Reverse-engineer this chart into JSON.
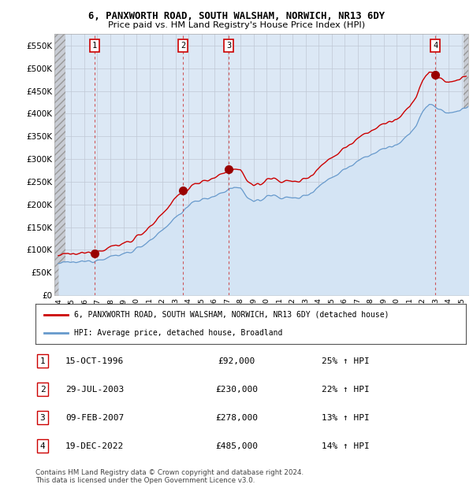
{
  "title": "6, PANXWORTH ROAD, SOUTH WALSHAM, NORWICH, NR13 6DY",
  "subtitle": "Price paid vs. HM Land Registry's House Price Index (HPI)",
  "ylim": [
    0,
    575000
  ],
  "xlim_start": 1993.7,
  "xlim_end": 2025.5,
  "yticks": [
    0,
    50000,
    100000,
    150000,
    200000,
    250000,
    300000,
    350000,
    400000,
    450000,
    500000,
    550000
  ],
  "ytick_labels": [
    "£0",
    "£50K",
    "£100K",
    "£150K",
    "£200K",
    "£250K",
    "£300K",
    "£350K",
    "£400K",
    "£450K",
    "£500K",
    "£550K"
  ],
  "xticks": [
    1994,
    1995,
    1996,
    1997,
    1998,
    1999,
    2000,
    2001,
    2002,
    2003,
    2004,
    2005,
    2006,
    2007,
    2008,
    2009,
    2010,
    2011,
    2012,
    2013,
    2014,
    2015,
    2016,
    2017,
    2018,
    2019,
    2020,
    2021,
    2022,
    2023,
    2024,
    2025
  ],
  "sale_dates": [
    1996.79,
    2003.57,
    2007.11,
    2022.96
  ],
  "sale_prices": [
    92000,
    230000,
    278000,
    485000
  ],
  "sale_labels": [
    "1",
    "2",
    "3",
    "4"
  ],
  "house_color": "#cc0000",
  "hpi_color": "#6699cc",
  "legend_house": "6, PANXWORTH ROAD, SOUTH WALSHAM, NORWICH, NR13 6DY (detached house)",
  "legend_hpi": "HPI: Average price, detached house, Broadland",
  "table_rows": [
    [
      "1",
      "15-OCT-1996",
      "£92,000",
      "25% ↑ HPI"
    ],
    [
      "2",
      "29-JUL-2003",
      "£230,000",
      "22% ↑ HPI"
    ],
    [
      "3",
      "09-FEB-2007",
      "£278,000",
      "13% ↑ HPI"
    ],
    [
      "4",
      "19-DEC-2022",
      "£485,000",
      "14% ↑ HPI"
    ]
  ],
  "footnote": "Contains HM Land Registry data © Crown copyright and database right 2024.\nThis data is licensed under the Open Government Licence v3.0.",
  "plot_bg": "#dce8f5",
  "hatch_color": "#c8c8c8"
}
